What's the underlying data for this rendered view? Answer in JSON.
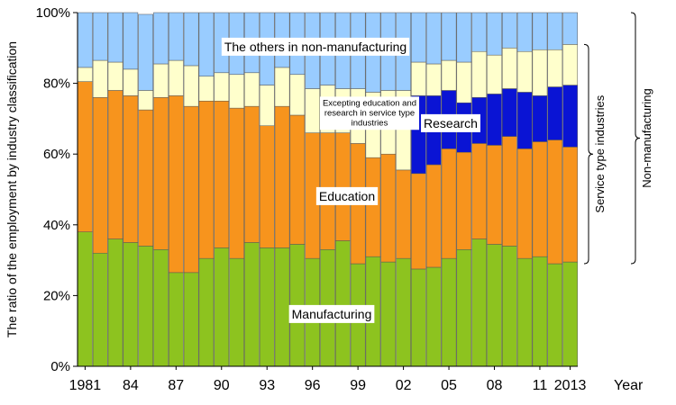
{
  "chart_data": {
    "type": "bar",
    "stacked": true,
    "ylabel": "The ratio of the employment by industry classification",
    "xlabel": "Year",
    "ylim": [
      0,
      100
    ],
    "y_ticks": [
      "0%",
      "20%",
      "40%",
      "60%",
      "80%",
      "100%"
    ],
    "x": [
      1981,
      1982,
      1983,
      1984,
      1985,
      1986,
      1987,
      1988,
      1989,
      1990,
      1991,
      1992,
      1993,
      1994,
      1995,
      1996,
      1997,
      1998,
      1999,
      2000,
      2001,
      2002,
      2003,
      2004,
      2005,
      2006,
      2007,
      2008,
      2009,
      2010,
      2011,
      2012,
      2013
    ],
    "x_tick_labels": [
      {
        "x": 1981,
        "label": "1981"
      },
      {
        "x": 1984,
        "label": "84"
      },
      {
        "x": 1987,
        "label": "87"
      },
      {
        "x": 1990,
        "label": "90"
      },
      {
        "x": 1993,
        "label": "93"
      },
      {
        "x": 1996,
        "label": "96"
      },
      {
        "x": 1999,
        "label": "99"
      },
      {
        "x": 2002,
        "label": "02"
      },
      {
        "x": 2005,
        "label": "05"
      },
      {
        "x": 2008,
        "label": "08"
      },
      {
        "x": 2011,
        "label": "11"
      },
      {
        "x": 2013,
        "label": "2013"
      }
    ],
    "series": [
      {
        "name": "Manufacturing",
        "color": "#8DC31F",
        "values": [
          38,
          32,
          36,
          35,
          34,
          33,
          26.5,
          26.5,
          30.5,
          33.5,
          30.5,
          35,
          33.5,
          33.5,
          34.5,
          30.5,
          33,
          35.5,
          29,
          31,
          29.5,
          30.5,
          27.5,
          28,
          30.5,
          33,
          36,
          34.5,
          34,
          30.5,
          31,
          29,
          29.5
        ]
      },
      {
        "name": "Education",
        "color": "#F7941D",
        "values": [
          42.5,
          44,
          42,
          41.5,
          38.5,
          43,
          50,
          47,
          44.5,
          41.5,
          42.5,
          38.5,
          34.5,
          40,
          36.5,
          35.5,
          33,
          30.5,
          34,
          28,
          30.5,
          25,
          27,
          29,
          31,
          27.5,
          27,
          28,
          31,
          31,
          32.5,
          35,
          32.5
        ]
      },
      {
        "name": "Research",
        "color": "#0A14D4",
        "values": [
          0,
          0,
          0,
          0,
          0,
          0,
          0,
          0,
          0,
          0,
          0,
          0,
          0,
          0,
          0,
          0,
          0,
          0,
          0,
          0,
          0,
          0,
          22,
          19.5,
          16.5,
          14,
          13,
          14.5,
          13.5,
          16,
          13,
          15,
          17.5
        ]
      },
      {
        "name": "Excepting education and research in service type industries",
        "color": "#FFFFCC",
        "values": [
          4,
          10.5,
          8,
          7.5,
          5.5,
          9.5,
          10,
          11.5,
          7,
          8,
          9.5,
          9.5,
          11.5,
          11,
          11.5,
          12.5,
          13.5,
          12.5,
          15.5,
          18.5,
          18,
          22.5,
          9.5,
          9,
          8.5,
          11.5,
          13,
          11,
          11.5,
          11.5,
          13,
          10.5,
          11.5
        ]
      },
      {
        "name": "The others in non-manufacturing",
        "color": "#99CCFF",
        "values": [
          15.5,
          13.5,
          14,
          16,
          21.5,
          14.5,
          13.5,
          15,
          18,
          17,
          17.5,
          17,
          20.5,
          15.5,
          17.5,
          21.5,
          20.5,
          21.5,
          21.5,
          22.5,
          22,
          22,
          14,
          14.5,
          13.5,
          14,
          11,
          12,
          10,
          11,
          10.5,
          10.5,
          9
        ]
      }
    ],
    "annotations": [
      {
        "text": "The others in non-manufacturing"
      },
      {
        "text": "Excepting education and research in service type industries",
        "lines": [
          "Excepting education and",
          "research in service type",
          "industries"
        ]
      },
      {
        "text": "Research"
      },
      {
        "text": "Education"
      },
      {
        "text": "Manufacturing"
      }
    ],
    "braces": [
      {
        "label": "Service type industries",
        "from": 29,
        "to": 91
      },
      {
        "label": "Non-manufacturing",
        "from": 29,
        "to": 100
      }
    ]
  }
}
